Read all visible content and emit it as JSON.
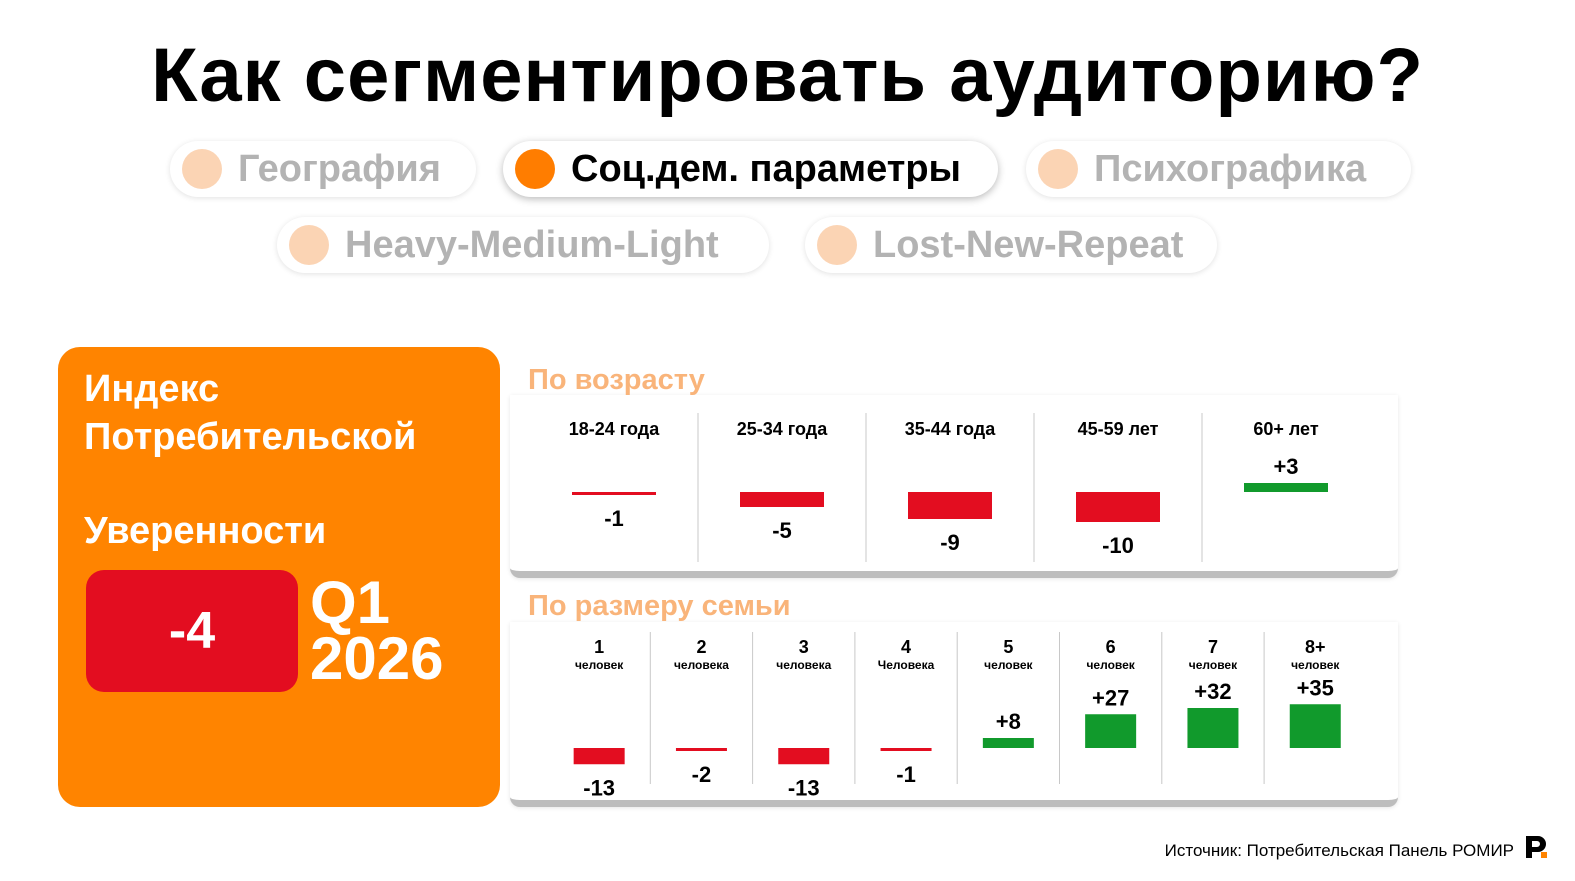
{
  "title": "Как сегментировать аудиторию?",
  "segment_tabs": [
    {
      "label": "География",
      "active": false
    },
    {
      "label": "Соц.дем. параметры",
      "active": true
    },
    {
      "label": "Психографика",
      "active": false
    },
    {
      "label": "Heavy-Medium-Light",
      "active": false
    },
    {
      "label": "Lost-New-Repeat",
      "active": false
    }
  ],
  "index_card": {
    "title_line1": "Индекс",
    "title_line2": "Потребительской",
    "title_line3": "Уверенности",
    "value": "-4",
    "period_line1": "Q1",
    "period_line2": "2026"
  },
  "colors": {
    "accent": "#ff8400",
    "negative": "#e30d20",
    "positive": "#119a2c",
    "panel_label": "#f9b47a"
  },
  "chart_data": [
    {
      "type": "bar",
      "title": "По возрасту",
      "categories": [
        "18-24 года",
        "25-34 года",
        "35-44 года",
        "45-59 лет",
        "60+ лет"
      ],
      "values": [
        -1,
        -5,
        -9,
        -10,
        3
      ],
      "value_labels": [
        "-1",
        "-5",
        "-9",
        "-10",
        "+3"
      ]
    },
    {
      "type": "bar",
      "title": "По размеру семьи",
      "categories": [
        "1",
        "2",
        "3",
        "4",
        "5",
        "6",
        "7",
        "8+"
      ],
      "category_sublabels": [
        "человек",
        "человека",
        "человека",
        "Человека",
        "человек",
        "человек",
        "человек",
        "человек"
      ],
      "values": [
        -13,
        -2,
        -13,
        -1,
        8,
        27,
        32,
        35
      ],
      "value_labels": [
        "-13",
        "-2",
        "-13",
        "-1",
        "+8",
        "+27",
        "+32",
        "+35"
      ]
    }
  ],
  "source": "Источник: Потребительская Панель РОМИР"
}
